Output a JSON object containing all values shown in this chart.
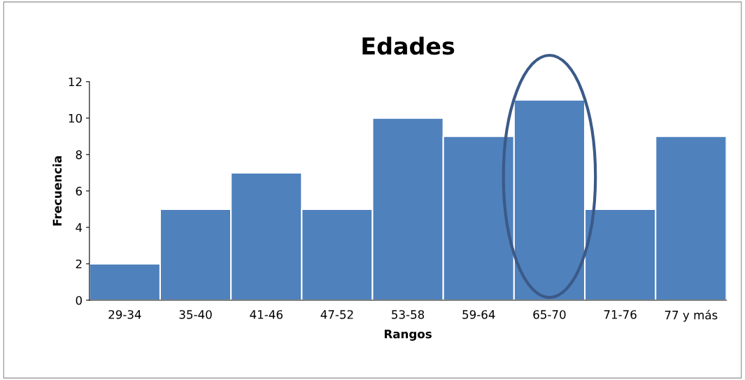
{
  "chart_data": {
    "type": "bar",
    "title": "Edades",
    "xlabel": "Rangos",
    "ylabel": "Frecuencia",
    "categories": [
      "29-34",
      "35-40",
      "41-46",
      "47-52",
      "53-58",
      "59-64",
      "65-70",
      "71-76",
      "77 y más"
    ],
    "values": [
      2,
      5,
      7,
      5,
      10,
      9,
      11,
      5,
      9
    ],
    "color": "#4f81bd",
    "ylim": [
      0,
      12
    ],
    "yticks": [
      0,
      2,
      4,
      6,
      8,
      10,
      12
    ],
    "grid": false,
    "legend": false
  }
}
